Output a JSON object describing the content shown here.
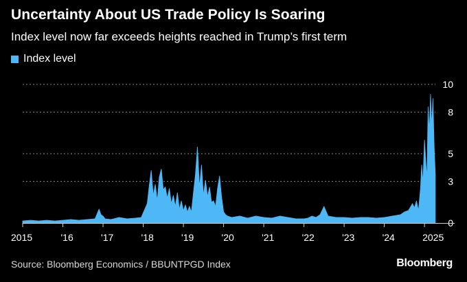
{
  "title": "Uncertainty About US Trade Policy Is Soaring",
  "subtitle": "Index level now far exceeds heights reached in Trump’s first term",
  "source": "Source: Bloomberg Economics / BBUNTPGD Index",
  "brand": "Bloomberg",
  "colors": {
    "series": "#4db8f5",
    "grid": "#8a8a8a",
    "axis": "#cfcfcf",
    "background": "#000000"
  },
  "chart_data": {
    "type": "area",
    "title": "Uncertainty About US Trade Policy Is Soaring",
    "subtitle": "Index level now far exceeds heights reached in Trump’s first term",
    "xlabel": "",
    "ylabel": "",
    "xlim": [
      2015,
      2025.75
    ],
    "ylim": [
      0,
      10
    ],
    "yticks": [
      0,
      3,
      5,
      8,
      10
    ],
    "ytick_labels": [
      "0",
      "3",
      "5",
      "8",
      "10"
    ],
    "xticks": [
      2015,
      2016,
      2017,
      2018,
      2019,
      2020,
      2021,
      2022,
      2023,
      2024,
      2025
    ],
    "xtick_labels": [
      "2015",
      "'16",
      "'17",
      "'18",
      "'19",
      "'20",
      "'21",
      "'22",
      "'23",
      "'24",
      "2025"
    ],
    "grid": true,
    "legend_position": "top-left",
    "series": [
      {
        "name": "Index level",
        "x": [
          2015.0,
          2015.2,
          2015.4,
          2015.6,
          2015.8,
          2016.0,
          2016.2,
          2016.4,
          2016.6,
          2016.8,
          2016.9,
          2016.95,
          2017.0,
          2017.05,
          2017.2,
          2017.4,
          2017.6,
          2017.8,
          2017.95,
          2018.1,
          2018.15,
          2018.2,
          2018.25,
          2018.3,
          2018.35,
          2018.4,
          2018.45,
          2018.5,
          2018.55,
          2018.6,
          2018.65,
          2018.7,
          2018.75,
          2018.8,
          2018.85,
          2018.9,
          2018.95,
          2019.0,
          2019.05,
          2019.1,
          2019.15,
          2019.2,
          2019.25,
          2019.3,
          2019.35,
          2019.4,
          2019.45,
          2019.5,
          2019.55,
          2019.6,
          2019.65,
          2019.7,
          2019.75,
          2019.8,
          2019.85,
          2019.9,
          2019.95,
          2020.0,
          2020.05,
          2020.1,
          2020.2,
          2020.4,
          2020.6,
          2020.8,
          2021.0,
          2021.2,
          2021.4,
          2021.6,
          2021.8,
          2022.0,
          2022.1,
          2022.2,
          2022.3,
          2022.4,
          2022.5,
          2022.6,
          2022.8,
          2023.0,
          2023.2,
          2023.4,
          2023.6,
          2023.8,
          2024.0,
          2024.2,
          2024.4,
          2024.5,
          2024.6,
          2024.7,
          2024.75,
          2024.8,
          2024.85,
          2024.9,
          2024.93,
          2024.96,
          2025.0,
          2025.03,
          2025.06,
          2025.09,
          2025.12,
          2025.15,
          2025.18,
          2025.21,
          2025.24,
          2025.27
        ],
        "values": [
          0.15,
          0.2,
          0.15,
          0.2,
          0.15,
          0.2,
          0.25,
          0.2,
          0.25,
          0.3,
          1.0,
          0.6,
          0.5,
          0.3,
          0.25,
          0.4,
          0.3,
          0.35,
          0.4,
          1.4,
          2.7,
          3.8,
          2.0,
          2.8,
          1.6,
          3.3,
          3.9,
          2.4,
          2.6,
          1.8,
          2.5,
          1.4,
          2.0,
          1.2,
          2.2,
          1.0,
          1.6,
          0.9,
          1.3,
          0.8,
          1.2,
          0.8,
          2.2,
          3.5,
          5.5,
          2.6,
          4.2,
          2.0,
          3.1,
          1.9,
          2.6,
          1.5,
          1.6,
          1.2,
          2.5,
          3.4,
          1.9,
          0.8,
          0.6,
          0.5,
          0.4,
          0.5,
          0.35,
          0.5,
          0.4,
          0.35,
          0.5,
          0.4,
          0.3,
          0.3,
          0.35,
          0.5,
          0.4,
          0.6,
          1.2,
          0.5,
          0.4,
          0.4,
          0.35,
          0.4,
          0.4,
          0.35,
          0.4,
          0.5,
          0.6,
          0.8,
          0.9,
          1.4,
          1.1,
          1.6,
          0.9,
          2.5,
          4.2,
          2.9,
          6.0,
          4.5,
          3.2,
          8.4,
          6.6,
          9.3,
          7.0,
          9.0,
          5.5,
          3.5
        ]
      }
    ]
  }
}
